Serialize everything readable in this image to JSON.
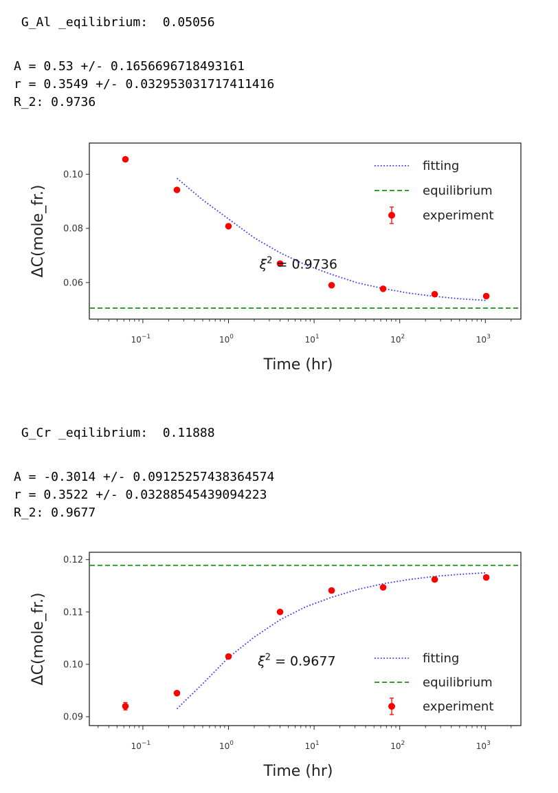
{
  "outputs": [
    {
      "eq_line": " G_Al _eqilibrium:  0.05056",
      "lines": [
        "A = 0.53 +/- 0.1656696718493161",
        "r = 0.3549 +/- 0.032953031717411416",
        "R_2: 0.9736"
      ]
    },
    {
      "eq_line": " G_Cr _eqilibrium:  0.11888",
      "lines": [
        "A = -0.3014 +/- 0.09125257438364574",
        "r = 0.3522 +/- 0.03288545439094223",
        "R_2: 0.9677"
      ]
    }
  ],
  "colors": {
    "fitting": "#3a3aff",
    "equilibrium": "#2ca02c",
    "experiment": "#ff0000"
  },
  "chart_data": [
    {
      "type": "scatter",
      "xscale": "log",
      "xlim": [
        0.0237,
        2600
      ],
      "ylim": [
        0.0465,
        0.1115
      ],
      "xlabel": "Time (hr)",
      "ylabel": "ΔC(mole_fr.)",
      "yticks": [
        0.06,
        0.08,
        0.1
      ],
      "ytick_labels": [
        "0.06",
        "0.08",
        "0.10"
      ],
      "xticks": [
        0.1,
        1,
        10,
        100,
        1000
      ],
      "xtick_labels": [
        [
          "10",
          "−1"
        ],
        [
          "10",
          "0"
        ],
        [
          "10",
          "1"
        ],
        [
          "10",
          "2"
        ],
        [
          "10",
          "3"
        ]
      ],
      "legend_position": "top-right",
      "legend": [
        "fitting",
        "equilibrium",
        "experiment"
      ],
      "annotation": {
        "prefix": "ξ",
        "sup": "2",
        "suffix": " = 0.9736",
        "x": 2.3,
        "y": 0.0667
      },
      "experiment": {
        "x": [
          0.0625,
          0.25,
          1,
          4,
          16,
          64,
          256,
          1024
        ],
        "y": [
          0.1055,
          0.0942,
          0.0808,
          0.067,
          0.059,
          0.0577,
          0.0557,
          0.055
        ],
        "err": [
          0.0003,
          0.0003,
          0.0003,
          0.0003,
          0.0003,
          0.0003,
          0.0003,
          0.0003
        ]
      },
      "fitting": {
        "x": [
          0.25,
          0.5,
          1,
          2,
          4,
          8,
          16,
          32,
          64,
          128,
          256,
          512,
          1024
        ],
        "y": [
          0.0985,
          0.0905,
          0.0835,
          0.0765,
          0.071,
          0.0665,
          0.063,
          0.0599,
          0.0578,
          0.0561,
          0.0549,
          0.054,
          0.0534
        ]
      },
      "equilibrium": 0.05056
    },
    {
      "type": "scatter",
      "xscale": "log",
      "xlim": [
        0.0237,
        2600
      ],
      "ylim": [
        0.0883,
        0.1214
      ],
      "xlabel": "Time (hr)",
      "ylabel": "ΔC(mole_fr.)",
      "yticks": [
        0.09,
        0.1,
        0.11,
        0.12
      ],
      "ytick_labels": [
        "0.09",
        "0.10",
        "0.11",
        "0.12"
      ],
      "xticks": [
        0.1,
        1,
        10,
        100,
        1000
      ],
      "xtick_labels": [
        [
          "10",
          "−1"
        ],
        [
          "10",
          "0"
        ],
        [
          "10",
          "1"
        ],
        [
          "10",
          "2"
        ],
        [
          "10",
          "3"
        ]
      ],
      "legend_position": "center-right",
      "legend": [
        "fitting",
        "equilibrium",
        "experiment"
      ],
      "annotation": {
        "prefix": "ξ",
        "sup": "2",
        "suffix": " = 0.9677",
        "x": 2.2,
        "y": 0.1006
      },
      "experiment": {
        "x": [
          0.0625,
          0.25,
          1,
          4,
          16,
          64,
          256,
          1024
        ],
        "y": [
          0.092,
          0.0945,
          0.1015,
          0.11,
          0.1141,
          0.1147,
          0.1162,
          0.1166
        ],
        "err": [
          0.0007,
          0.0004,
          0.0003,
          0.0004,
          0.0003,
          0.0003,
          0.0003,
          0.0003
        ]
      },
      "fitting": {
        "x": [
          0.25,
          0.5,
          1,
          2,
          4,
          8,
          16,
          32,
          64,
          128,
          256,
          512,
          1024
        ],
        "y": [
          0.0915,
          0.0963,
          0.1013,
          0.1052,
          0.1085,
          0.111,
          0.1128,
          0.1143,
          0.1154,
          0.1162,
          0.1168,
          0.1172,
          0.1175
        ]
      },
      "equilibrium": 0.11888
    }
  ]
}
